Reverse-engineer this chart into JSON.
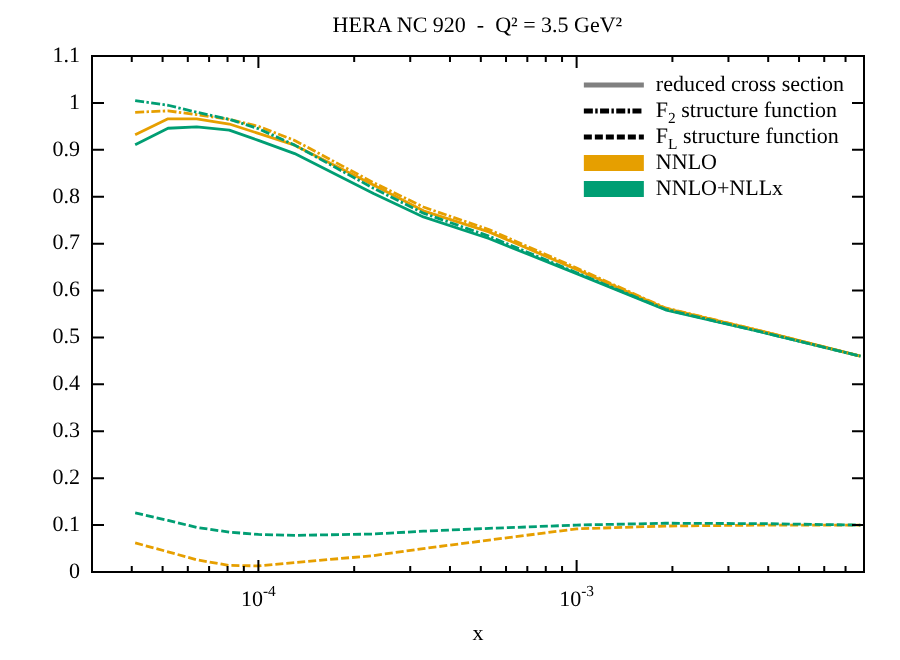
{
  "chart_data": {
    "type": "line",
    "title": "HERA NC 920  -  Q² = 3.5 GeV²",
    "xlabel": "x",
    "log": "x",
    "x": [
      4.1e-05,
      5.2e-05,
      6.4e-05,
      8.1e-05,
      0.0001,
      0.00013,
      0.00023,
      0.00033,
      0.00053,
      0.001,
      0.0019,
      0.0039,
      0.0078
    ],
    "xlim": [
      3e-05,
      0.008
    ],
    "xticks": [
      {
        "value": 3e-05,
        "label": null
      },
      {
        "value": 4e-05,
        "label": null
      },
      {
        "value": 5e-05,
        "label": null
      },
      {
        "value": 6e-05,
        "label": null
      },
      {
        "value": 7e-05,
        "label": null
      },
      {
        "value": 8e-05,
        "label": null
      },
      {
        "value": 9e-05,
        "label": null
      },
      {
        "value": 0.0001,
        "label": "10$^{-4}$"
      },
      {
        "value": 0.0002,
        "label": null
      },
      {
        "value": 0.0003,
        "label": null
      },
      {
        "value": 0.0004,
        "label": null
      },
      {
        "value": 0.0005,
        "label": null
      },
      {
        "value": 0.0006,
        "label": null
      },
      {
        "value": 0.0007,
        "label": null
      },
      {
        "value": 0.0008,
        "label": null
      },
      {
        "value": 0.0009,
        "label": null
      },
      {
        "value": 0.001,
        "label": "10$^{-3}$"
      },
      {
        "value": 0.002,
        "label": null
      },
      {
        "value": 0.003,
        "label": null
      },
      {
        "value": 0.004,
        "label": null
      },
      {
        "value": 0.005,
        "label": null
      },
      {
        "value": 0.006,
        "label": null
      },
      {
        "value": 0.007,
        "label": null
      },
      {
        "value": 0.008,
        "label": null
      }
    ],
    "ylim": [
      0,
      1.1
    ],
    "yticks": [
      0,
      0.1,
      0.2,
      0.3,
      0.4,
      0.5,
      0.6,
      0.7,
      0.8,
      0.9,
      1,
      1.1
    ],
    "grid": false,
    "legend": "top right",
    "marker": "none",
    "series": [
      {
        "name": "reduced cross section",
        "color": "#808080",
        "line_style": "solid",
        "values": [
          null,
          null,
          null,
          null,
          null,
          null,
          null,
          null,
          null,
          null,
          null,
          null,
          null
        ]
      },
      {
        "name": "F$_{2}$ structure function",
        "color": "#000000",
        "line_style": "dashdot",
        "values": [
          null,
          null,
          null,
          null,
          null,
          null,
          null,
          null,
          null,
          null,
          null,
          null,
          null
        ]
      },
      {
        "name": "F$_{L}$ structure function",
        "color": "#000000",
        "line_style": "dashed",
        "values": [
          null,
          null,
          null,
          null,
          null,
          null,
          null,
          null,
          null,
          null,
          null,
          null,
          null
        ]
      },
      {
        "name": "NNLO",
        "color": "#e69f00",
        "line_style": "solid",
        "values": [
          0.932,
          0.966,
          0.966,
          0.955,
          0.935,
          0.91,
          0.825,
          0.77,
          0.725,
          0.645,
          0.562,
          0.512,
          0.46
        ]
      },
      {
        "name": "NNLO+NLLx",
        "color": "#009e73",
        "line_style": "solid",
        "values": [
          0.911,
          0.946,
          0.949,
          0.942,
          0.92,
          0.892,
          0.807,
          0.757,
          0.711,
          0.636,
          0.559,
          0.51,
          0.46
        ]
      },
      {
        "color": "#e69f00",
        "line_style": "dashdot",
        "values": [
          0.98,
          0.983,
          0.975,
          0.965,
          0.95,
          0.92,
          0.83,
          0.778,
          0.73,
          0.648,
          0.563,
          0.512,
          0.46
        ]
      },
      {
        "color": "#009e73",
        "line_style": "dashdot",
        "values": [
          1.005,
          0.995,
          0.98,
          0.965,
          0.945,
          0.91,
          0.818,
          0.765,
          0.716,
          0.638,
          0.56,
          0.51,
          0.46
        ]
      },
      {
        "color": "#e69f00",
        "line_style": "dashed",
        "values": [
          0.062,
          0.043,
          0.026,
          0.014,
          0.013,
          0.02,
          0.035,
          0.05,
          0.068,
          0.092,
          0.098,
          0.1,
          0.1
        ]
      },
      {
        "color": "#009e73",
        "line_style": "dashed",
        "values": [
          0.126,
          0.11,
          0.095,
          0.085,
          0.08,
          0.078,
          0.081,
          0.087,
          0.093,
          0.1,
          0.104,
          0.103,
          0.1
        ]
      }
    ]
  }
}
